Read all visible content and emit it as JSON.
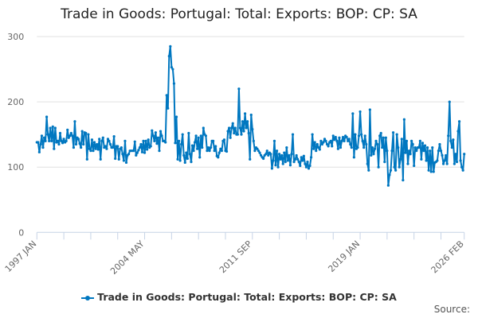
{
  "chart_data": {
    "type": "line",
    "title": "Trade in Goods: Portugal: Total: Exports: BOP: CP: SA",
    "xlabel": "",
    "ylabel": "",
    "ylim": [
      0,
      300
    ],
    "yticks": [
      "0",
      "100",
      "200",
      "300"
    ],
    "xtick_labels": [
      "1997 JAN",
      "2004 MAY",
      "2011 SEP",
      "2019 JAN",
      "2026 FEB"
    ],
    "start": "1997 JAN",
    "end": "2026 FEB",
    "frequency": "monthly",
    "grid": true,
    "legend_placement": "bottom",
    "series": [
      {
        "name": "Trade in Goods: Portugal: Total: Exports: BOP: CP: SA",
        "color": "#0077c0",
        "values": [
          138,
          138,
          123,
          135,
          148,
          130,
          145,
          140,
          177,
          150,
          140,
          160,
          140,
          162,
          128,
          160,
          138,
          140,
          135,
          152,
          140,
          137,
          143,
          138,
          140,
          157,
          145,
          148,
          152,
          148,
          130,
          170,
          135,
          145,
          143,
          136,
          130,
          155,
          135,
          153,
          152,
          112,
          150,
          128,
          125,
          142,
          125,
          138,
          128,
          135,
          127,
          143,
          112,
          140,
          145,
          130,
          132,
          128,
          143,
          140,
          135,
          130,
          130,
          147,
          113,
          132,
          132,
          112,
          128,
          130,
          120,
          110,
          140,
          107,
          118,
          120,
          125,
          125,
          125,
          125,
          139,
          118,
          122,
          126,
          130,
          135,
          123,
          140,
          122,
          140,
          127,
          142,
          130,
          132,
          156,
          148,
          140,
          153,
          136,
          145,
          125,
          155,
          148,
          140,
          140,
          138,
          210,
          190,
          270,
          285,
          253,
          250,
          228,
          137,
          177,
          112,
          140,
          110,
          135,
          150,
          118,
          107,
          122,
          113,
          152,
          120,
          108,
          133,
          125,
          138,
          148,
          128,
          145,
          115,
          148,
          130,
          160,
          150,
          148,
          125,
          130,
          125,
          130,
          140,
          140,
          125,
          132,
          117,
          115,
          122,
          128,
          125,
          140,
          142,
          125,
          124,
          155,
          160,
          145,
          160,
          167,
          152,
          160,
          150,
          150,
          220,
          160,
          150,
          170,
          155,
          182,
          160,
          170,
          152,
          112,
          180,
          158,
          140,
          125,
          130,
          128,
          125,
          122,
          118,
          115,
          113,
          118,
          120,
          125,
          118,
          122,
          120,
          98,
          110,
          140,
          103,
          125,
          100,
          120,
          112,
          118,
          105,
          122,
          108,
          130,
          110,
          118,
          103,
          120,
          150,
          108,
          112,
          118,
          112,
          108,
          102,
          115,
          110,
          117,
          105,
          100,
          108,
          98,
          102,
          115,
          150,
          128,
          138,
          125,
          135,
          130,
          127,
          140,
          135,
          138,
          143,
          140,
          135,
          132,
          138,
          140,
          132,
          148,
          142,
          146,
          140,
          128,
          145,
          130,
          140,
          146,
          140,
          148,
          146,
          140,
          143,
          135,
          130,
          182,
          115,
          150,
          128,
          130,
          148,
          185,
          150,
          140,
          130,
          148,
          135,
          105,
          95,
          188,
          118,
          130,
          120,
          128,
          140,
          135,
          100,
          148,
          152,
          130,
          145,
          108,
          145,
          125,
          72,
          88,
          95,
          125,
          153,
          100,
          95,
          150,
          130,
          100,
          112,
          143,
          80,
          173,
          122,
          140,
          105,
          125,
          120,
          140,
          135,
          102,
          130,
          125,
          130,
          130,
          140,
          112,
          137,
          125,
          133,
          110,
          130,
          95,
          125,
          93,
          130,
          93,
          107,
          108,
          110,
          125,
          135,
          125,
          118,
          105,
          110,
          118,
          105,
          148,
          200,
          140,
          130,
          142,
          105,
          120,
          108,
          155,
          170,
          110,
          100,
          95,
          120
        ]
      }
    ]
  },
  "legend": {
    "label": "Trade in Goods: Portugal: Total: Exports: BOP: CP: SA"
  },
  "source": {
    "label": "Source:"
  }
}
